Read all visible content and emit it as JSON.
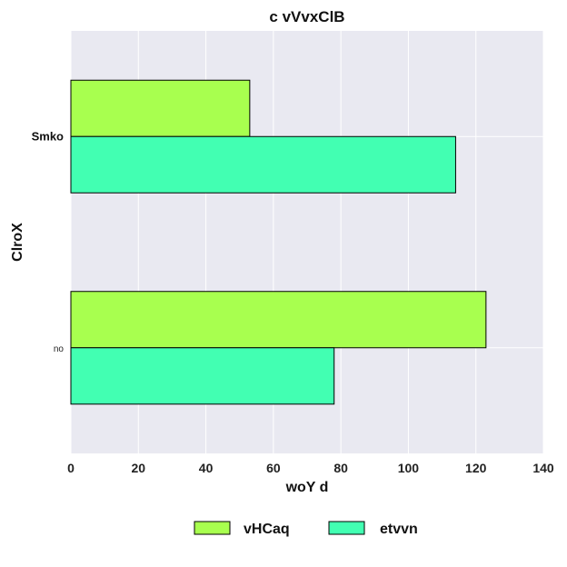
{
  "chart_data": {
    "type": "bar",
    "orientation": "horizontal",
    "title": "c  vVvxClB",
    "xlabel": "woY d",
    "ylabel": "ClroX",
    "categories": [
      "Smko",
      "no"
    ],
    "series": [
      {
        "name": "vHCaq",
        "values": [
          53,
          123
        ],
        "color": "#a8ff4f"
      },
      {
        "name": "etvvn",
        "values": [
          114,
          78
        ],
        "color": "#42ffb2"
      }
    ],
    "xlim": [
      0,
      140
    ],
    "xticks": [
      0,
      20,
      40,
      60,
      80,
      100,
      120,
      140
    ],
    "grid": true,
    "legend_position": "bottom-center",
    "background": "#e9e9f1"
  }
}
